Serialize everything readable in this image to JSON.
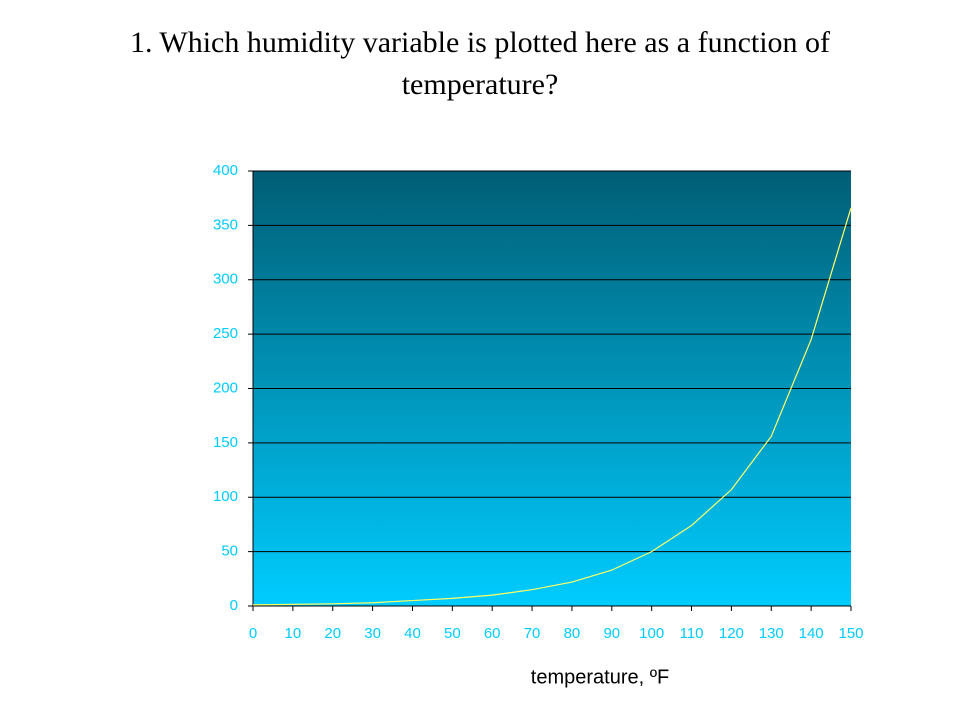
{
  "chart_data": {
    "type": "line",
    "title": "1. Which humidity variable is plotted here as a function of temperature?",
    "x_label": "temperature, ºF",
    "x": [
      0,
      10,
      20,
      30,
      40,
      50,
      60,
      70,
      80,
      90,
      100,
      110,
      120,
      130,
      140,
      150
    ],
    "series": [
      {
        "name": "humidity",
        "color": "#ffff66",
        "values": [
          1,
          1.5,
          2,
          3,
          5,
          7,
          10,
          15,
          22,
          33,
          50,
          74,
          107,
          156,
          245,
          366
        ]
      }
    ],
    "xlim": [
      0,
      150
    ],
    "xticks": [
      0,
      10,
      20,
      30,
      40,
      50,
      60,
      70,
      80,
      90,
      100,
      110,
      120,
      130,
      140,
      150
    ],
    "ylim": [
      0,
      400
    ],
    "yticks": [
      0,
      50,
      100,
      150,
      200,
      250,
      300,
      350,
      400
    ],
    "grid": true,
    "tick_color": "#00ccff",
    "background_top": "#005e75",
    "background_bottom": "#00ccff"
  }
}
